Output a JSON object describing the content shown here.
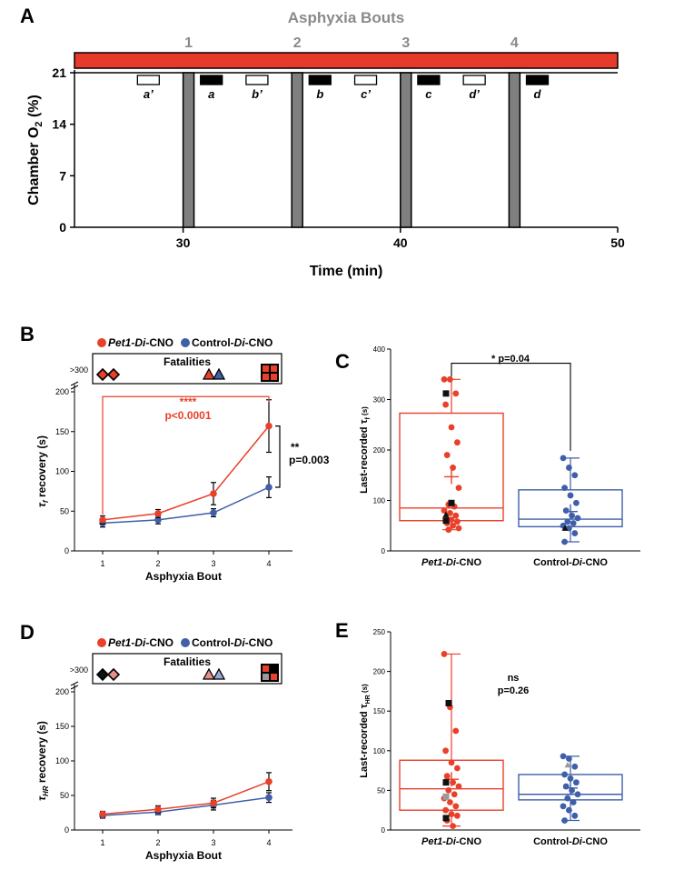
{
  "colors": {
    "red": "#e8402a",
    "blue": "#3f5fa9",
    "gray": "#808080",
    "bar": "#e63b2a",
    "black": "#111111",
    "lightred": "#e88e8e",
    "lightblue": "#9aa6d4"
  },
  "chart_data": [
    {
      "id": "A",
      "type": "timeline",
      "panel_label": "A",
      "title": "Asphyxia Bouts",
      "ylabel_main": "Chamber O",
      "ylabel_sub": "2",
      "ylabel_unit": " (%)",
      "xlabel": "Time (min)",
      "xlim": [
        25,
        50
      ],
      "ylim": [
        0,
        21
      ],
      "x_ticks": [
        "30",
        "40",
        "50"
      ],
      "y_ticks": [
        "0",
        "7",
        "14",
        "21"
      ],
      "bout_labels": [
        "1",
        "2",
        "3",
        "4"
      ],
      "drops_start_min": [
        30,
        35,
        40,
        45
      ],
      "drop_duration_min": 0.5,
      "windows": [
        {
          "label": "a’",
          "prime": true,
          "bout": 1
        },
        {
          "label": "a",
          "prime": false,
          "bout": 1
        },
        {
          "label": "b’",
          "prime": true,
          "bout": 2
        },
        {
          "label": "b",
          "prime": false,
          "bout": 2
        },
        {
          "label": "c’",
          "prime": true,
          "bout": 3
        },
        {
          "label": "c",
          "prime": false,
          "bout": 3
        },
        {
          "label": "d’",
          "prime": true,
          "bout": 4
        },
        {
          "label": "d",
          "prime": false,
          "bout": 4
        }
      ]
    },
    {
      "id": "B",
      "type": "line",
      "panel_label": "B",
      "ylabel_main": "τ",
      "ylabel_sub": "f",
      "ylabel_rest": " recovery (s)",
      "xlabel": "Asphyxia Bout",
      "x": [
        "1",
        "2",
        "3",
        "4"
      ],
      "y_ticks": [
        "0",
        "50",
        "100",
        "150",
        "200"
      ],
      "top_tick": ">300",
      "ylim": [
        0,
        200
      ],
      "legend": [
        {
          "prefix": "Pet1-",
          "di": "Di",
          "suffix": "-CNO"
        },
        {
          "prefix": "Control-",
          "di": "Di",
          "suffix": "-CNO"
        }
      ],
      "series": [
        {
          "values": [
            39,
            47,
            72,
            157
          ],
          "errors": [
            5,
            5,
            14,
            33
          ]
        },
        {
          "values": [
            35,
            39,
            48,
            80
          ],
          "errors": [
            5,
            5,
            5,
            13
          ]
        }
      ],
      "fatalities_title": "Fatalities",
      "stats_red": {
        "stars": "****",
        "p": "p<0.0001"
      },
      "stats_black": {
        "stars": "**",
        "p": "p=0.003"
      }
    },
    {
      "id": "C",
      "type": "box",
      "panel_label": "C",
      "ylabel_main": "Last-recorded τ",
      "ylabel_sub": "f",
      "ylabel_unit": " (s)",
      "categories": [
        {
          "prefix": "Pet1-",
          "di": "Di",
          "suffix": "-CNO"
        },
        {
          "prefix": "Control-",
          "di": "Di",
          "suffix": "-CNO"
        }
      ],
      "ylim": [
        0,
        400
      ],
      "y_ticks": [
        "0",
        "100",
        "200",
        "300",
        "400"
      ],
      "stat": "*  p=0.04",
      "groups": [
        {
          "q1": 60,
          "median": 85,
          "q3": 273,
          "mean": 147,
          "whisker_low": 42,
          "whisker_high": 340,
          "points": [
            340,
            340,
            312,
            290,
            245,
            215,
            190,
            165,
            125,
            92,
            88,
            80,
            75,
            70,
            65,
            62,
            58,
            55,
            50,
            45,
            42
          ],
          "marked": [
            {
              "shape": "square",
              "value": 312
            },
            {
              "shape": "square",
              "value": 95
            },
            {
              "shape": "square",
              "value": 60
            },
            {
              "shape": "triangle",
              "value": 72
            }
          ]
        },
        {
          "q1": 48,
          "median": 63,
          "q3": 121,
          "mean": 78,
          "whisker_low": 18,
          "whisker_high": 184,
          "points": [
            184,
            165,
            150,
            125,
            110,
            95,
            80,
            70,
            65,
            58,
            55,
            50,
            45,
            35,
            18
          ],
          "marked": [
            {
              "shape": "triangle",
              "value": 45
            }
          ]
        }
      ]
    },
    {
      "id": "D",
      "type": "line",
      "panel_label": "D",
      "ylabel_main": "τ",
      "ylabel_sub": "HR",
      "ylabel_rest": " recovery (s)",
      "xlabel": "Asphyxia Bout",
      "x": [
        "1",
        "2",
        "3",
        "4"
      ],
      "y_ticks": [
        "0",
        "50",
        "100",
        "150",
        "200"
      ],
      "top_tick": ">300",
      "ylim": [
        0,
        200
      ],
      "legend": [
        {
          "prefix": "Pet1-",
          "di": "Di",
          "suffix": "-CNO"
        },
        {
          "prefix": "Control-",
          "di": "Di",
          "suffix": "-CNO"
        }
      ],
      "series": [
        {
          "values": [
            23,
            30,
            39,
            70
          ],
          "errors": [
            4,
            5,
            7,
            13
          ]
        },
        {
          "values": [
            21,
            26,
            36,
            47
          ],
          "errors": [
            4,
            4,
            7,
            7
          ]
        }
      ],
      "fatalities_title": "Fatalities"
    },
    {
      "id": "E",
      "type": "box",
      "panel_label": "E",
      "ylabel_main": "Last-recorded τ",
      "ylabel_sub": "HR",
      "ylabel_unit": " (s)",
      "categories": [
        {
          "prefix": "Pet1-",
          "di": "Di",
          "suffix": "-CNO"
        },
        {
          "prefix": "Control-",
          "di": "Di",
          "suffix": "-CNO"
        }
      ],
      "ylim": [
        0,
        250
      ],
      "y_ticks": [
        "0",
        "50",
        "100",
        "150",
        "200",
        "250"
      ],
      "stat_ns": "ns",
      "stat_p": "p=0.26",
      "groups": [
        {
          "q1": 25,
          "median": 52,
          "q3": 88,
          "mean": 64,
          "whisker_low": 5,
          "whisker_high": 222,
          "points": [
            222,
            155,
            125,
            100,
            85,
            78,
            68,
            60,
            55,
            50,
            45,
            40,
            35,
            30,
            25,
            20,
            18,
            12,
            5
          ],
          "marked": [
            {
              "shape": "square",
              "value": 160
            },
            {
              "shape": "square",
              "value": 60
            },
            {
              "shape": "square",
              "value": 15
            },
            {
              "shape": "square-gray",
              "value": 42
            }
          ]
        },
        {
          "q1": 38,
          "median": 45,
          "q3": 70,
          "mean": 53,
          "whisker_low": 12,
          "whisker_high": 93,
          "points": [
            93,
            90,
            80,
            70,
            65,
            60,
            55,
            50,
            45,
            40,
            35,
            30,
            25,
            18,
            12
          ],
          "marked": [
            {
              "shape": "triangle-gray",
              "value": 82
            }
          ]
        }
      ]
    }
  ]
}
